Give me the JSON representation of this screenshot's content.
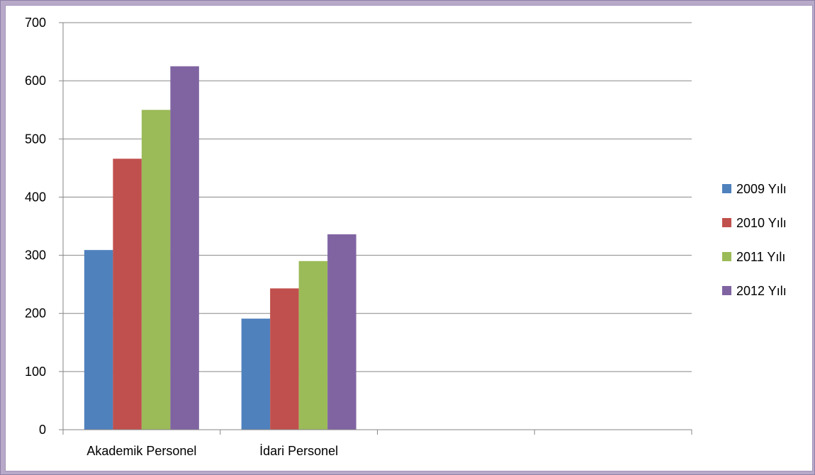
{
  "chart_data": {
    "type": "bar",
    "categories": [
      "Akademik Personel",
      "İdari Personel",
      "",
      ""
    ],
    "series": [
      {
        "name": "2009 Yılı",
        "color": "#4f81bd",
        "values": [
          309,
          191,
          null,
          null
        ]
      },
      {
        "name": "2010 Yılı",
        "color": "#c0504d",
        "values": [
          466,
          243,
          null,
          null
        ]
      },
      {
        "name": "2011 Yılı",
        "color": "#9bbb59",
        "values": [
          550,
          290,
          null,
          null
        ]
      },
      {
        "name": "2012 Yılı",
        "color": "#8064a2",
        "values": [
          625,
          336,
          null,
          null
        ]
      }
    ],
    "yticks": [
      "0",
      "100",
      "200",
      "300",
      "400",
      "500",
      "600",
      "700"
    ],
    "ylim": [
      0,
      700
    ],
    "grid": true,
    "legend_position": "right"
  }
}
